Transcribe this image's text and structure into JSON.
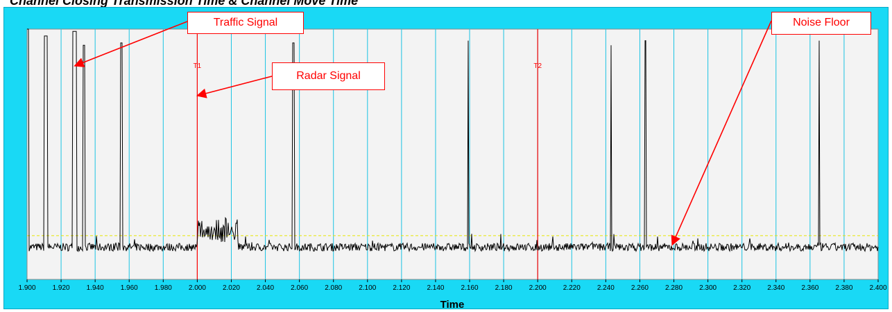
{
  "title": "Channel Closing Transmission Time & Channel Move Time",
  "chart_data": {
    "type": "line",
    "xlabel": "Time",
    "xlim": [
      1.9,
      2.4
    ],
    "x_ticks": [
      "1.900",
      "1.920",
      "1.940",
      "1.960",
      "1.980",
      "2.000",
      "2.020",
      "2.040",
      "2.060",
      "2.080",
      "2.100",
      "2.120",
      "2.140",
      "2.160",
      "2.180",
      "2.200",
      "2.220",
      "2.240",
      "2.260",
      "2.280",
      "2.300",
      "2.320",
      "2.340",
      "2.360",
      "2.380",
      "2.400"
    ],
    "grid": true,
    "noise_floor": 0.05,
    "threshold_line": 0.1,
    "pulses": [
      {
        "x_start": 1.9,
        "x_end": 1.901,
        "level": 1.0
      },
      {
        "x_start": 1.91,
        "x_end": 1.912,
        "level": 0.97
      },
      {
        "x_start": 1.9265,
        "x_end": 1.929,
        "level": 0.99
      },
      {
        "x_start": 1.933,
        "x_end": 1.934,
        "level": 0.93
      },
      {
        "x_start": 1.955,
        "x_end": 1.956,
        "level": 0.94
      },
      {
        "x_start": 2.056,
        "x_end": 2.057,
        "level": 0.94
      },
      {
        "x_start": 2.159,
        "x_end": 2.1595,
        "level": 0.95
      },
      {
        "x_start": 2.243,
        "x_end": 2.2435,
        "level": 0.93
      },
      {
        "x_start": 2.263,
        "x_end": 2.2635,
        "level": 0.95
      },
      {
        "x_start": 2.365,
        "x_end": 2.3655,
        "level": 0.95
      }
    ],
    "radar_burst": {
      "x_start": 2.0,
      "x_end": 2.024,
      "level": 0.16
    },
    "markers": [
      {
        "label": "T1",
        "x": 2.0
      },
      {
        "label": "T2",
        "x": 2.2
      }
    ],
    "colors": {
      "background": "#19d9f5",
      "plot": "#f3f3f3",
      "grid": "#19c3e3",
      "trace": "#000000",
      "marker": "#ff0000",
      "threshold": "#e6e600",
      "callout": "#ff0000"
    },
    "annotations": [
      {
        "label": "Traffic Signal",
        "target_x": 1.928,
        "target_level": 0.84
      },
      {
        "label": "Radar Signal",
        "target_x": 2.0,
        "target_level": 0.71
      },
      {
        "label": "Noise Floor",
        "target_x": 2.279,
        "target_level": 0.06
      }
    ]
  }
}
